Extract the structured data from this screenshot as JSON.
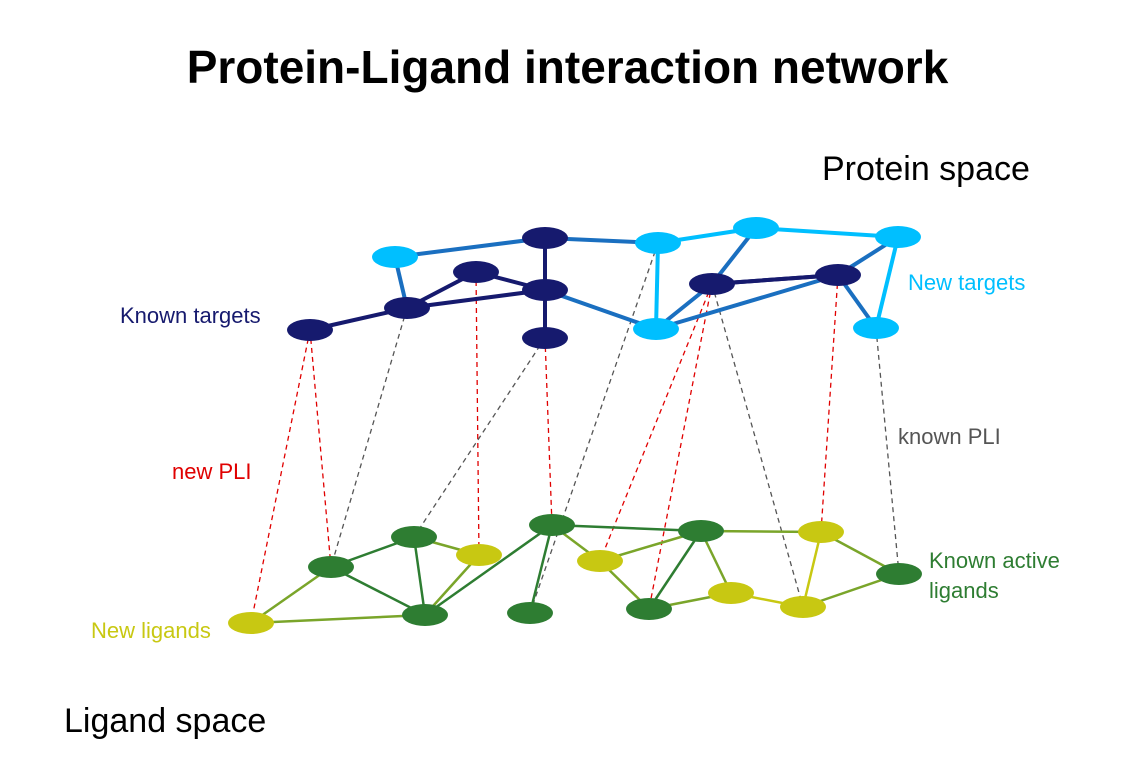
{
  "title": "Protein-Ligand interaction network",
  "labels": {
    "protein_space": "Protein space",
    "ligand_space": "Ligand space",
    "known_targets": "Known targets",
    "new_targets": "New targets",
    "new_pli": "new PLI",
    "known_pli": "known PLI",
    "new_ligands": "New ligands",
    "known_active_ligands_line1": "Known active",
    "known_active_ligands_line2": "ligands"
  },
  "colors": {
    "known_target": "#161a6e",
    "new_target": "#00bfff",
    "known_ligand": "#2e7d32",
    "new_ligand": "#c8c812",
    "new_pli": "#e00000",
    "known_pli": "#555555"
  },
  "network": {
    "protein_nodes": [
      {
        "id": "P1",
        "kind": "new"
      },
      {
        "id": "P2",
        "kind": "known"
      },
      {
        "id": "P3",
        "kind": "new"
      },
      {
        "id": "P4",
        "kind": "new"
      },
      {
        "id": "P5",
        "kind": "new"
      },
      {
        "id": "P6",
        "kind": "known"
      },
      {
        "id": "P7",
        "kind": "known"
      },
      {
        "id": "P8",
        "kind": "known"
      },
      {
        "id": "P9",
        "kind": "known"
      },
      {
        "id": "P10",
        "kind": "known"
      },
      {
        "id": "P11",
        "kind": "known"
      },
      {
        "id": "P12",
        "kind": "new"
      },
      {
        "id": "P13",
        "kind": "known"
      },
      {
        "id": "P14",
        "kind": "new"
      }
    ],
    "ligand_nodes": [
      {
        "id": "L1",
        "kind": "new"
      },
      {
        "id": "L2",
        "kind": "known"
      },
      {
        "id": "L3",
        "kind": "known"
      },
      {
        "id": "L4",
        "kind": "new"
      },
      {
        "id": "L5",
        "kind": "known"
      },
      {
        "id": "L6",
        "kind": "known"
      },
      {
        "id": "L7",
        "kind": "known"
      },
      {
        "id": "L8",
        "kind": "new"
      },
      {
        "id": "L9",
        "kind": "known"
      },
      {
        "id": "L10",
        "kind": "known"
      },
      {
        "id": "L11",
        "kind": "new"
      },
      {
        "id": "L12",
        "kind": "new"
      },
      {
        "id": "L13",
        "kind": "new"
      },
      {
        "id": "L14",
        "kind": "known"
      }
    ],
    "protein_edges": [
      [
        "P1",
        "P2"
      ],
      [
        "P2",
        "P3"
      ],
      [
        "P3",
        "P4"
      ],
      [
        "P4",
        "P5"
      ],
      [
        "P1",
        "P8"
      ],
      [
        "P7",
        "P8"
      ],
      [
        "P8",
        "P6"
      ],
      [
        "P6",
        "P9"
      ],
      [
        "P9",
        "P10"
      ],
      [
        "P8",
        "P9"
      ],
      [
        "P2",
        "P9"
      ],
      [
        "P9",
        "P12"
      ],
      [
        "P3",
        "P12"
      ],
      [
        "P4",
        "P11"
      ],
      [
        "P11",
        "P13"
      ],
      [
        "P13",
        "P14"
      ],
      [
        "P5",
        "P14"
      ],
      [
        "P5",
        "P13"
      ],
      [
        "P11",
        "P13"
      ],
      [
        "P11",
        "P12"
      ],
      [
        "P12",
        "P13"
      ]
    ],
    "ligand_edges": [
      [
        "L1",
        "L2"
      ],
      [
        "L1",
        "L5"
      ],
      [
        "L2",
        "L3"
      ],
      [
        "L2",
        "L5"
      ],
      [
        "L3",
        "L5"
      ],
      [
        "L3",
        "L4"
      ],
      [
        "L4",
        "L5"
      ],
      [
        "L5",
        "L7"
      ],
      [
        "L7",
        "L6"
      ],
      [
        "L7",
        "L8"
      ],
      [
        "L7",
        "L10"
      ],
      [
        "L8",
        "L10"
      ],
      [
        "L8",
        "L9"
      ],
      [
        "L9",
        "L10"
      ],
      [
        "L10",
        "L11"
      ],
      [
        "L9",
        "L11"
      ],
      [
        "L10",
        "L12"
      ],
      [
        "L11",
        "L13"
      ],
      [
        "L12",
        "L13"
      ],
      [
        "L12",
        "L14"
      ],
      [
        "L13",
        "L14"
      ]
    ],
    "interaction_links": [
      {
        "from": "P7",
        "to": "L1",
        "kind": "new"
      },
      {
        "from": "P7",
        "to": "L2",
        "kind": "new"
      },
      {
        "from": "P8",
        "to": "L2",
        "kind": "known"
      },
      {
        "from": "P6",
        "to": "L4",
        "kind": "new"
      },
      {
        "from": "P10",
        "to": "L3",
        "kind": "known"
      },
      {
        "from": "P10",
        "to": "L7",
        "kind": "new"
      },
      {
        "from": "P3",
        "to": "L6",
        "kind": "known"
      },
      {
        "from": "P11",
        "to": "L8",
        "kind": "new"
      },
      {
        "from": "P11",
        "to": "L9",
        "kind": "new"
      },
      {
        "from": "P11",
        "to": "L13",
        "kind": "known"
      },
      {
        "from": "P13",
        "to": "L12",
        "kind": "new"
      },
      {
        "from": "P14",
        "to": "L14",
        "kind": "known"
      }
    ]
  }
}
